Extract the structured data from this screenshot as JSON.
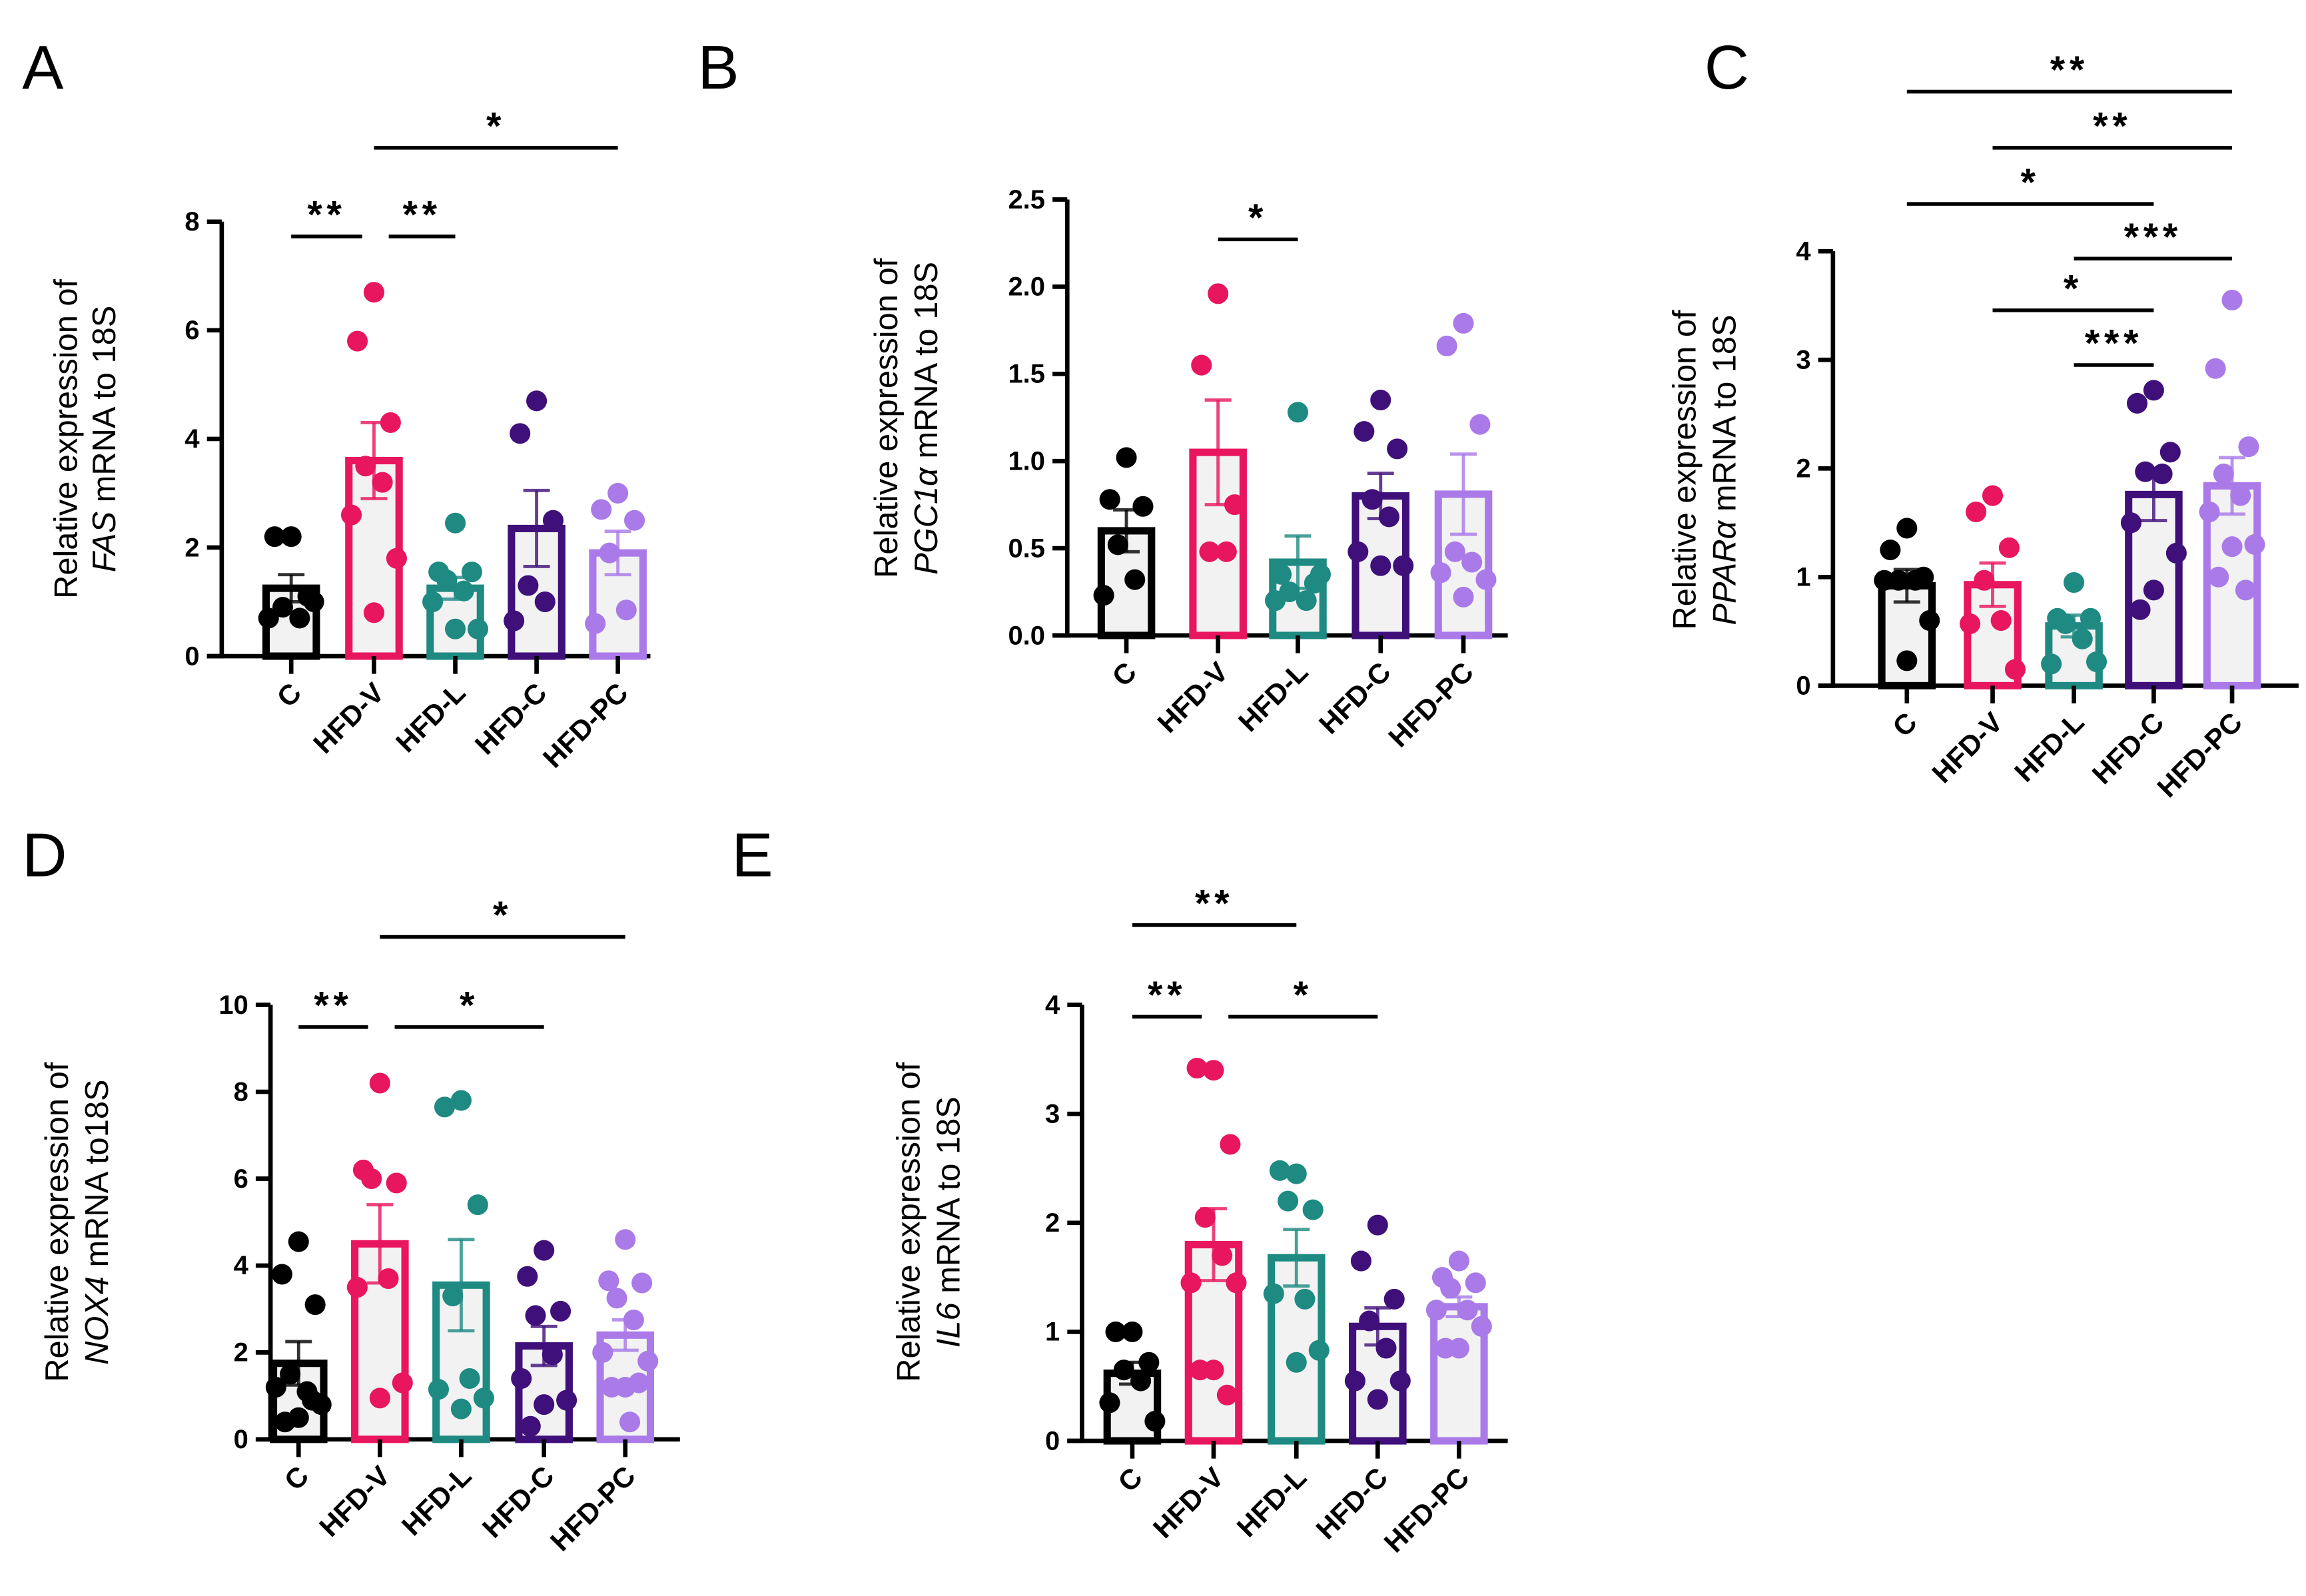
{
  "colors": {
    "C": "#000000",
    "HFD-V": "#e8155f",
    "HFD-L": "#1e8a82",
    "HFD-C": "#3f0f7a",
    "HFD-PC": "#a97ae8",
    "bar_fill": "#f2f2f2"
  },
  "chart_data": [
    {
      "panel": "A",
      "type": "bar",
      "ylabel_line1": "Relative expression of",
      "gene": "FAS",
      "ylabel_rest": " mRNA to 18S",
      "categories": [
        "C",
        "HFD-V",
        "HFD-L",
        "HFD-C",
        "HFD-PC"
      ],
      "ylim": [
        0,
        8
      ],
      "yticks": [
        0,
        2,
        4,
        6,
        8
      ],
      "ytick_labels": [
        "0",
        "2",
        "4",
        "6",
        "8"
      ],
      "means": [
        1.25,
        3.6,
        1.25,
        2.35,
        1.9
      ],
      "sem": [
        0.25,
        0.7,
        0.2,
        0.7,
        0.4
      ],
      "points": [
        [
          2.2,
          2.2,
          1.1,
          0.9,
          0.7,
          0.7,
          1.0
        ],
        [
          6.7,
          5.8,
          4.3,
          3.5,
          3.2,
          2.6,
          1.8,
          0.8
        ],
        [
          2.45,
          1.55,
          1.55,
          1.4,
          1.2,
          1.0,
          0.5,
          0.5
        ],
        [
          4.7,
          4.1,
          2.5,
          1.3,
          1.0,
          0.65
        ],
        [
          3.0,
          2.7,
          2.5,
          1.9,
          0.85,
          0.6
        ]
      ],
      "significance": [
        {
          "from": "C",
          "to": "HFD-V",
          "label": "**",
          "level": 0
        },
        {
          "from": "HFD-V",
          "to": "HFD-L",
          "label": "**",
          "level": 0
        },
        {
          "from": "HFD-V",
          "to": "HFD-PC",
          "label": "*",
          "level": 1
        }
      ]
    },
    {
      "panel": "B",
      "type": "bar",
      "ylabel_line1": "Relative expression of",
      "gene": "PGC1α",
      "ylabel_rest": " mRNA to 18S",
      "categories": [
        "C",
        "HFD-V",
        "HFD-L",
        "HFD-C",
        "HFD-PC"
      ],
      "ylim": [
        0,
        2.5
      ],
      "yticks": [
        0,
        0.5,
        1,
        1.5,
        2,
        2.5
      ],
      "ytick_labels": [
        "0.0",
        "0.5",
        "1.0",
        "1.5",
        "2.0",
        "2.5"
      ],
      "means": [
        0.6,
        1.05,
        0.42,
        0.8,
        0.81
      ],
      "sem": [
        0.12,
        0.3,
        0.15,
        0.13,
        0.23
      ],
      "points": [
        [
          1.02,
          0.78,
          0.74,
          0.52,
          0.32,
          0.23
        ],
        [
          1.96,
          1.55,
          0.75,
          0.48,
          0.48
        ],
        [
          1.28,
          0.35,
          0.3,
          0.25,
          0.2,
          0.2,
          0.35
        ],
        [
          1.35,
          1.17,
          1.07,
          0.78,
          0.68,
          0.48,
          0.4,
          0.4
        ],
        [
          1.79,
          1.66,
          1.21,
          0.48,
          0.42,
          0.36,
          0.32,
          0.22
        ]
      ],
      "significance": [
        {
          "from": "HFD-V",
          "to": "HFD-L",
          "label": "*",
          "level": 0
        }
      ]
    },
    {
      "panel": "C",
      "type": "bar",
      "ylabel_line1": "Relative expression of",
      "gene": "PPARα",
      "ylabel_rest": " mRNA to 18S",
      "categories": [
        "C",
        "HFD-V",
        "HFD-L",
        "HFD-C",
        "HFD-PC"
      ],
      "ylim": [
        0,
        4
      ],
      "yticks": [
        0,
        1,
        2,
        3,
        4
      ],
      "ytick_labels": [
        "0",
        "1",
        "2",
        "3",
        "4"
      ],
      "means": [
        0.92,
        0.93,
        0.55,
        1.76,
        1.84
      ],
      "sem": [
        0.15,
        0.2,
        0.1,
        0.24,
        0.26
      ],
      "points": [
        [
          1.45,
          1.25,
          1.0,
          0.97,
          0.97,
          0.97,
          0.6,
          0.23
        ],
        [
          1.75,
          1.6,
          1.27,
          0.97,
          0.6,
          0.57,
          0.15
        ],
        [
          0.95,
          0.62,
          0.62,
          0.57,
          0.43,
          0.2,
          0.22
        ],
        [
          2.72,
          2.6,
          2.15,
          1.97,
          1.95,
          1.5,
          1.22,
          0.88,
          0.7
        ],
        [
          3.55,
          2.92,
          2.2,
          1.95,
          1.75,
          1.6,
          1.3,
          1.28,
          1.0,
          0.88
        ]
      ],
      "significance": [
        {
          "from": "HFD-L",
          "to": "HFD-C",
          "label": "***",
          "level": 0
        },
        {
          "from": "HFD-V",
          "to": "HFD-C",
          "label": "*",
          "level": 1
        },
        {
          "from": "HFD-L",
          "to": "HFD-PC",
          "label": "***",
          "level": 2
        },
        {
          "from": "C",
          "to": "HFD-C",
          "label": "*",
          "level": 3
        },
        {
          "from": "HFD-V",
          "to": "HFD-PC",
          "label": "**",
          "level": 4
        },
        {
          "from": "C",
          "to": "HFD-PC",
          "label": "**",
          "level": 5
        }
      ]
    },
    {
      "panel": "D",
      "type": "bar",
      "ylabel_line1": "Relative expression of",
      "gene": "NOX4",
      "ylabel_rest": " mRNA to18S",
      "categories": [
        "C",
        "HFD-V",
        "HFD-L",
        "HFD-C",
        "HFD-PC"
      ],
      "ylim": [
        0,
        10
      ],
      "yticks": [
        0,
        2,
        4,
        6,
        8,
        10
      ],
      "ytick_labels": [
        "0",
        "2",
        "4",
        "6",
        "8",
        "10"
      ],
      "means": [
        1.75,
        4.5,
        3.55,
        2.15,
        2.4
      ],
      "sem": [
        0.5,
        0.9,
        1.05,
        0.45,
        0.35
      ],
      "points": [
        [
          4.55,
          3.8,
          3.1,
          1.5,
          1.1,
          1.2,
          0.8,
          0.5,
          0.4,
          0.9
        ],
        [
          8.2,
          6.2,
          5.9,
          6.0,
          3.7,
          3.5,
          1.3,
          0.95
        ],
        [
          7.8,
          7.65,
          5.4,
          3.3,
          1.4,
          1.15,
          0.95,
          0.7
        ],
        [
          4.35,
          3.75,
          2.95,
          2.85,
          1.95,
          1.4,
          0.9,
          0.8,
          0.3
        ],
        [
          4.6,
          3.65,
          3.6,
          3.25,
          2.75,
          2.0,
          1.8,
          1.2,
          1.2,
          1.3,
          0.4
        ]
      ],
      "significance": [
        {
          "from": "C",
          "to": "HFD-V",
          "label": "**",
          "level": 0
        },
        {
          "from": "HFD-V",
          "to": "HFD-C",
          "label": "*",
          "level": 0
        },
        {
          "from": "HFD-V",
          "to": "HFD-PC",
          "label": "*",
          "level": 1
        }
      ]
    },
    {
      "panel": "E",
      "type": "bar",
      "ylabel_line1": "Relative expression of",
      "gene": "IL6",
      "ylabel_rest": " mRNA to 18S",
      "categories": [
        "C",
        "HFD-V",
        "HFD-L",
        "HFD-C",
        "HFD-PC"
      ],
      "ylim": [
        0,
        4
      ],
      "yticks": [
        0,
        1,
        2,
        3,
        4
      ],
      "ytick_labels": [
        "0",
        "1",
        "2",
        "3",
        "4"
      ],
      "means": [
        0.62,
        1.8,
        1.68,
        1.05,
        1.23
      ],
      "sem": [
        0.1,
        0.33,
        0.26,
        0.17,
        0.09
      ],
      "points": [
        [
          1.0,
          1.0,
          0.72,
          0.65,
          0.55,
          0.35,
          0.18
        ],
        [
          3.4,
          3.42,
          2.72,
          2.05,
          1.7,
          1.45,
          1.45,
          0.65,
          0.65,
          0.42
        ],
        [
          2.45,
          2.48,
          2.12,
          2.2,
          1.3,
          1.35,
          0.83,
          0.72
        ],
        [
          1.98,
          1.65,
          1.3,
          1.1,
          0.85,
          0.55,
          0.55,
          0.38
        ],
        [
          1.65,
          1.5,
          1.45,
          1.4,
          1.2,
          1.2,
          1.05,
          0.85,
          0.85
        ]
      ],
      "significance": [
        {
          "from": "C",
          "to": "HFD-V",
          "label": "**",
          "level": 0
        },
        {
          "from": "HFD-V",
          "to": "HFD-C",
          "label": "*",
          "level": 0
        },
        {
          "from": "C",
          "to": "HFD-L",
          "label": "**",
          "level": 1
        }
      ]
    }
  ]
}
